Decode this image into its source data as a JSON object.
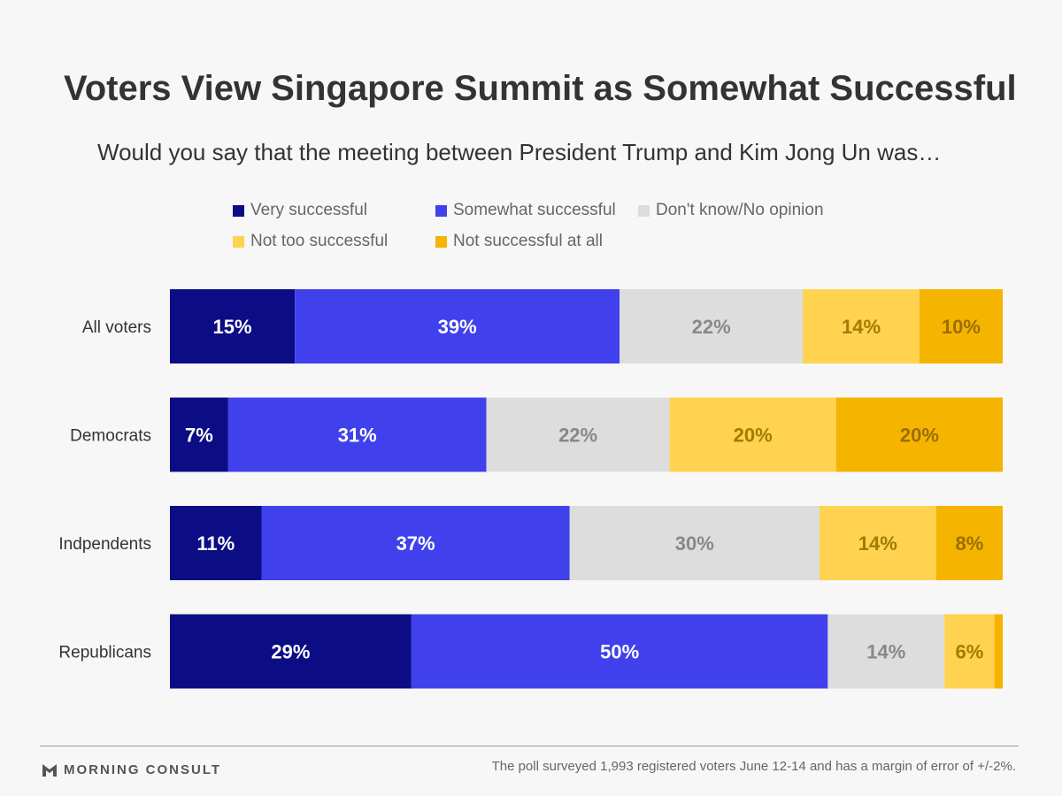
{
  "chart_data": {
    "type": "bar",
    "orientation": "horizontal",
    "stacked": true,
    "title": "Voters View Singapore Summit as Somewhat Successful",
    "subtitle": "Would you say that the meeting between President Trump and Kim Jong Un was…",
    "categories": [
      "All voters",
      "Democrats",
      "Indpendents",
      "Republicans"
    ],
    "value_suffix": "%",
    "xlim": [
      0,
      100
    ],
    "grid": false,
    "legend_position": "top",
    "series": [
      {
        "name": "Very successful",
        "color": "#0c0d85",
        "label_color": "#ffffff",
        "values": [
          15,
          7,
          11,
          29
        ],
        "labels": [
          "15%",
          "7%",
          "11%",
          "29%"
        ]
      },
      {
        "name": "Somewhat successful",
        "color": "#4041ec",
        "label_color": "#ffffff",
        "values": [
          39,
          31,
          37,
          50
        ],
        "labels": [
          "39%",
          "31%",
          "37%",
          "50%"
        ]
      },
      {
        "name": "Don't know/No opinion",
        "color": "#dddddd",
        "label_color": "#888888",
        "values": [
          22,
          22,
          30,
          14
        ],
        "labels": [
          "22%",
          "22%",
          "30%",
          "14%"
        ]
      },
      {
        "name": "Not too successful",
        "color": "#ffd24f",
        "label_color": "#a17c00",
        "values": [
          14,
          20,
          14,
          6
        ],
        "labels": [
          "14%",
          "20%",
          "14%",
          "6%"
        ]
      },
      {
        "name": "Not successful at all",
        "color": "#f5b400",
        "label_color": "#9a6e00",
        "values": [
          10,
          20,
          8,
          1
        ],
        "labels": [
          "10%",
          "20%",
          "8%",
          ""
        ]
      }
    ]
  },
  "footer": {
    "brand": "MORNING CONSULT",
    "note": "The poll surveyed 1,993 registered voters June 12-14 and has a margin of error of +/-2%."
  }
}
